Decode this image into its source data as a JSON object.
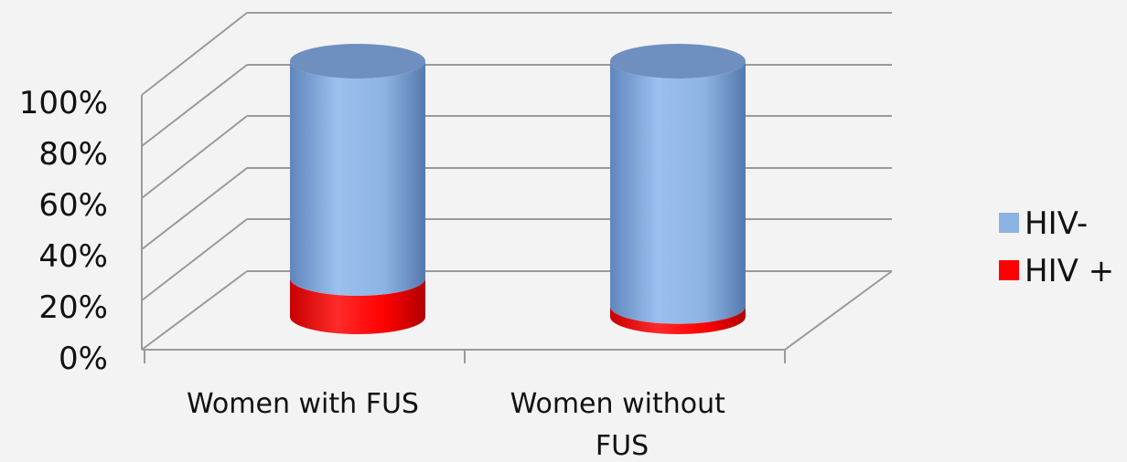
{
  "chart_data": {
    "type": "bar",
    "stacked": true,
    "percent_stacked": true,
    "style": "3d-cylinder",
    "categories": [
      "Women with FUS",
      "Women without FUS"
    ],
    "series": [
      {
        "name": "HIV-",
        "values": [
          85,
          96
        ],
        "color": "#8db3e2"
      },
      {
        "name": "HIV +",
        "values": [
          15,
          4
        ],
        "color": "#ff0000"
      }
    ],
    "y_ticks": [
      "0%",
      "20%",
      "40%",
      "60%",
      "80%",
      "100%"
    ],
    "ylim": [
      0,
      100
    ],
    "grid": true,
    "legend_position": "right"
  }
}
